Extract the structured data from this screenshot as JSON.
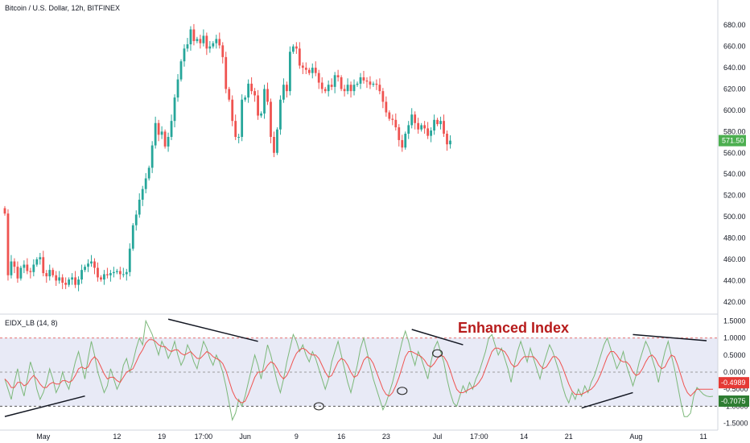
{
  "header": {
    "symbol_title": "Bitcoin / U.S. Dollar, 12h, BITFINEX",
    "indicator_title": "EIDX_LB (14, 8)",
    "banner": "Enhanced Index"
  },
  "colors": {
    "bull": "#26a69a",
    "bear": "#ef5350",
    "index_line": "#7cb87a",
    "signal_line": "#ef5350",
    "band_fill": "#e8eaf6",
    "band_line": "#e57373",
    "mid_line": "#9e9e9e",
    "last_price_tag": "#4caf50",
    "tag_red": "#e53935",
    "tag_green": "#2e7d32",
    "axis_text": "#131722",
    "banner": "#b71c1c"
  },
  "chart_data": [
    {
      "type": "candlestick",
      "title": "Bitcoin / U.S. Dollar, 12h, BITFINEX",
      "ylim": [
        410,
        690
      ],
      "yticks": [
        420,
        440,
        460,
        480,
        500,
        520,
        540,
        560,
        580,
        600,
        620,
        640,
        660,
        680
      ],
      "ytick_labels": [
        "420.00",
        "440.00",
        "460.00",
        "480.00",
        "500.00",
        "520.00",
        "540.00",
        "560.00",
        "580.00",
        "600.00",
        "620.00",
        "640.00",
        "660.00",
        "680.00"
      ],
      "last_price": 571.5,
      "last_price_label": "571.50",
      "closes": [
        503,
        445,
        458,
        453,
        442,
        452,
        455,
        449,
        448,
        455,
        460,
        462,
        447,
        444,
        450,
        445,
        440,
        443,
        438,
        436,
        441,
        443,
        436,
        441,
        450,
        453,
        456,
        458,
        452,
        443,
        441,
        446,
        445,
        447,
        448,
        449,
        446,
        446,
        448,
        470,
        492,
        502,
        516,
        526,
        536,
        546,
        567,
        588,
        577,
        580,
        566,
        575,
        590,
        612,
        629,
        646,
        658,
        662,
        676,
        665,
        667,
        663,
        670,
        658,
        660,
        663,
        667,
        661,
        650,
        620,
        610,
        590,
        575,
        575,
        610,
        612,
        625,
        618,
        614,
        595,
        597,
        620,
        608,
        575,
        560,
        582,
        610,
        624,
        618,
        655,
        660,
        658,
        642,
        640,
        638,
        635,
        640,
        635,
        626,
        620,
        618,
        624,
        622,
        633,
        631,
        620,
        618,
        624,
        618,
        624,
        625,
        631,
        628,
        627,
        624,
        625,
        624,
        618,
        608,
        598,
        592,
        591,
        584,
        572,
        565,
        578,
        586,
        596,
        588,
        582,
        586,
        583,
        576,
        581,
        591,
        587,
        590,
        578,
        568,
        571.5
      ],
      "xticks": [
        {
          "label": "May",
          "index": 12
        },
        {
          "label": "12",
          "index": 35
        },
        {
          "label": "19",
          "index": 49
        },
        {
          "label": "17:00",
          "index": 62
        },
        {
          "label": "Jun",
          "index": 75
        },
        {
          "label": "9",
          "index": 91
        },
        {
          "label": "16",
          "index": 105
        },
        {
          "label": "23",
          "index": 119
        },
        {
          "label": "Jul",
          "index": 135
        },
        {
          "label": "17:00",
          "index": 148
        },
        {
          "label": "14",
          "index": 162
        },
        {
          "label": "21",
          "index": 176
        },
        {
          "label": "Aug",
          "index": 197
        },
        {
          "label": "11",
          "index": 218
        }
      ],
      "x_count": 222
    },
    {
      "type": "line",
      "title": "EIDX_LB (14, 8)",
      "ylim": [
        -1.65,
        1.65
      ],
      "yticks": [
        1.5,
        1.0,
        0.5,
        0.0,
        -0.5,
        -1.0,
        -1.5
      ],
      "ytick_labels": [
        "1.5000",
        "1.0000",
        "0.5000",
        "0.0000",
        "-0.5000",
        "-1.0000",
        "-1.5000"
      ],
      "upper_band": 1.0,
      "lower_band": -1.0,
      "mid_line": 0.0,
      "series": [
        {
          "values": [
            -0.2,
            -0.5,
            -0.8,
            -0.3,
            0.1,
            -0.4,
            -0.7,
            -0.2,
            0.3,
            0.0,
            -0.5,
            -0.8,
            -0.6,
            -0.3,
            0.1,
            -0.2,
            -0.6,
            -0.4,
            0.0,
            -0.3,
            -0.5,
            -0.1,
            0.3,
            0.6,
            0.2,
            -0.2,
            0.4,
            0.9,
            0.5,
            0.0,
            -0.3,
            -0.6,
            -0.4,
            0.1,
            -0.2,
            -0.5,
            -0.3,
            0.2,
            0.4,
            0.0,
            0.3,
            0.7,
            1.0,
            0.8,
            1.5,
            1.3,
            1.1,
            0.8,
            0.5,
            0.9,
            0.7,
            0.4,
            0.6,
            0.9,
            0.5,
            0.2,
            0.4,
            0.8,
            0.6,
            0.3,
            0.1,
            0.5,
            0.9,
            0.7,
            0.4,
            0.2,
            0.5,
            0.3,
            0.0,
            -0.4,
            -0.9,
            -1.4,
            -1.2,
            -0.8,
            -1.0,
            -0.7,
            -0.3,
            0.1,
            0.5,
            0.2,
            -0.2,
            0.3,
            0.8,
            0.5,
            0.1,
            -0.3,
            -0.6,
            -0.2,
            0.3,
            0.7,
            1.1,
            0.9,
            0.6,
            0.8,
            0.5,
            0.3,
            0.6,
            0.4,
            0.1,
            -0.2,
            -0.5,
            -0.2,
            0.3,
            0.6,
            0.9,
            0.5,
            0.1,
            -0.3,
            -0.6,
            -0.2,
            0.2,
            0.7,
            1.0,
            0.6,
            0.2,
            -0.2,
            -0.5,
            -0.8,
            -1.1,
            -0.9,
            -0.6,
            -0.3,
            0.1,
            0.5,
            0.9,
            1.2,
            0.9,
            0.5,
            0.2,
            0.6,
            0.4,
            0.1,
            -0.2,
            0.3,
            0.7,
            0.9,
            0.6,
            0.3,
            -0.2,
            -0.6,
            -0.9,
            -1.0,
            -0.7,
            -0.4,
            -0.6,
            -0.3,
            -0.5,
            -0.2,
            0.0,
            0.3,
            0.6,
            1.0,
            1.1,
            0.8,
            0.5,
            0.7,
            0.4,
            0.1,
            -0.3,
            0.2,
            0.6,
            0.9,
            0.6,
            0.3,
            0.7,
            0.4,
            0.1,
            -0.2,
            0.2,
            0.5,
            0.8,
            0.6,
            0.3,
            0.0,
            -0.4,
            -0.7,
            -0.9,
            -0.6,
            -0.8,
            -0.5,
            -0.7,
            -0.4,
            -0.6,
            -0.3,
            -0.1,
            0.2,
            0.5,
            0.8,
            1.0,
            0.7,
            0.4,
            0.1,
            0.3,
            0.6,
            0.2,
            -0.1,
            -0.4,
            -0.1,
            0.3,
            0.6,
            0.9,
            0.7,
            0.4,
            0.1,
            -0.3,
            0.2,
            0.6,
            0.9,
            0.5,
            0.1,
            -0.4,
            -0.9,
            -1.3,
            -1.3,
            -1.2,
            -0.7,
            -0.45,
            -0.55,
            -0.65,
            -0.7,
            -0.72,
            -0.7075
          ]
        },
        {
          "values": [
            -0.2,
            -0.3,
            -0.45,
            -0.45,
            -0.3,
            -0.3,
            -0.4,
            -0.35,
            -0.2,
            -0.1,
            -0.2,
            -0.35,
            -0.45,
            -0.45,
            -0.35,
            -0.3,
            -0.35,
            -0.35,
            -0.25,
            -0.25,
            -0.3,
            -0.25,
            -0.1,
            0.1,
            0.15,
            0.1,
            0.15,
            0.35,
            0.45,
            0.35,
            0.15,
            -0.05,
            -0.2,
            -0.15,
            -0.15,
            -0.25,
            -0.3,
            -0.15,
            0.0,
            0.05,
            0.1,
            0.3,
            0.5,
            0.65,
            0.85,
            0.95,
            0.95,
            0.9,
            0.8,
            0.75,
            0.75,
            0.65,
            0.6,
            0.65,
            0.65,
            0.55,
            0.5,
            0.55,
            0.6,
            0.5,
            0.4,
            0.4,
            0.5,
            0.6,
            0.55,
            0.45,
            0.4,
            0.35,
            0.25,
            0.05,
            -0.25,
            -0.55,
            -0.75,
            -0.85,
            -0.9,
            -0.85,
            -0.65,
            -0.4,
            -0.15,
            0.0,
            0.0,
            0.05,
            0.2,
            0.3,
            0.25,
            0.1,
            -0.1,
            -0.2,
            -0.1,
            0.1,
            0.35,
            0.55,
            0.65,
            0.7,
            0.65,
            0.55,
            0.5,
            0.5,
            0.4,
            0.2,
            0.0,
            -0.15,
            -0.1,
            0.1,
            0.3,
            0.4,
            0.35,
            0.2,
            0.0,
            -0.15,
            -0.1,
            0.1,
            0.35,
            0.45,
            0.4,
            0.25,
            0.0,
            -0.25,
            -0.5,
            -0.65,
            -0.7,
            -0.6,
            -0.4,
            -0.15,
            0.15,
            0.45,
            0.6,
            0.6,
            0.55,
            0.5,
            0.45,
            0.35,
            0.2,
            0.15,
            0.25,
            0.4,
            0.5,
            0.45,
            0.3,
            0.05,
            -0.25,
            -0.5,
            -0.6,
            -0.6,
            -0.55,
            -0.5,
            -0.45,
            -0.4,
            -0.3,
            -0.15,
            0.1,
            0.35,
            0.6,
            0.7,
            0.7,
            0.65,
            0.6,
            0.45,
            0.25,
            0.15,
            0.2,
            0.35,
            0.45,
            0.45,
            0.45,
            0.45,
            0.35,
            0.2,
            0.1,
            0.15,
            0.3,
            0.45,
            0.45,
            0.35,
            0.15,
            -0.1,
            -0.35,
            -0.55,
            -0.65,
            -0.65,
            -0.65,
            -0.6,
            -0.55,
            -0.5,
            -0.4,
            -0.25,
            -0.05,
            0.2,
            0.45,
            0.6,
            0.6,
            0.5,
            0.35,
            0.3,
            0.3,
            0.2,
            0.0,
            -0.1,
            -0.05,
            0.1,
            0.3,
            0.45,
            0.5,
            0.4,
            0.2,
            0.1,
            0.15,
            0.35,
            0.5,
            0.45,
            0.2,
            -0.1,
            -0.4,
            -0.6,
            -0.7,
            -0.6,
            -0.5,
            -0.5,
            -0.5,
            -0.5,
            -0.5,
            -0.4989
          ]
        }
      ],
      "last_values": [
        {
          "label": "-0.4989",
          "value": -0.4989
        },
        {
          "label": "-0.7075",
          "value": -0.7075
        }
      ],
      "annotations": [
        {
          "type": "divergence_line",
          "from": [
            0,
            -1.3
          ],
          "to": [
            25,
            -0.7
          ]
        },
        {
          "type": "divergence_line",
          "from": [
            51,
            1.55
          ],
          "to": [
            79,
            0.9
          ]
        },
        {
          "type": "divergence_line",
          "from": [
            127,
            1.25
          ],
          "to": [
            143,
            0.8
          ]
        },
        {
          "type": "divergence_line",
          "from": [
            180,
            -1.05
          ],
          "to": [
            196,
            -0.6
          ]
        },
        {
          "type": "divergence_line",
          "from": [
            196,
            1.1
          ],
          "to": [
            219,
            0.92
          ]
        },
        {
          "type": "circle_marker",
          "at": [
            98,
            -1.0
          ]
        },
        {
          "type": "circle_marker",
          "at": [
            124,
            -0.55
          ]
        },
        {
          "type": "circle_marker",
          "at": [
            135,
            0.55
          ]
        }
      ]
    }
  ]
}
